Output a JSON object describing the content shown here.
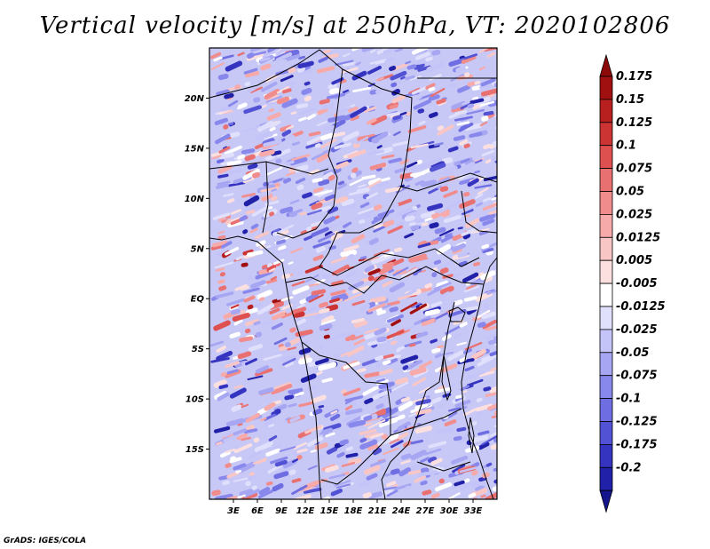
{
  "title": "Vertical velocity [m/s] at 250hPa, VT: 2020102806",
  "credit": "GrADS: IGES/COLA",
  "map": {
    "lat_range": [
      -20,
      25
    ],
    "lon_range": [
      0,
      36
    ],
    "lat_labels": [
      {
        "label": "20N",
        "value": 20
      },
      {
        "label": "15N",
        "value": 15
      },
      {
        "label": "10N",
        "value": 10
      },
      {
        "label": "5N",
        "value": 5
      },
      {
        "label": "EQ",
        "value": 0
      },
      {
        "label": "5S",
        "value": -5
      },
      {
        "label": "10S",
        "value": -10
      },
      {
        "label": "15S",
        "value": -15
      }
    ],
    "lon_labels": [
      {
        "label": "3E",
        "value": 3
      },
      {
        "label": "6E",
        "value": 6
      },
      {
        "label": "9E",
        "value": 9
      },
      {
        "label": "12E",
        "value": 12
      },
      {
        "label": "15E",
        "value": 15
      },
      {
        "label": "18E",
        "value": 18
      },
      {
        "label": "21E",
        "value": 21
      },
      {
        "label": "24E",
        "value": 24
      },
      {
        "label": "27E",
        "value": 27
      },
      {
        "label": "30E",
        "value": 30
      },
      {
        "label": "33E",
        "value": 33
      }
    ]
  },
  "colorbar": {
    "levels": [
      {
        "label": "0.175",
        "color": "#a01010"
      },
      {
        "label": "0.15",
        "color": "#b82020"
      },
      {
        "label": "0.125",
        "color": "#cc3434"
      },
      {
        "label": "0.1",
        "color": "#de5050"
      },
      {
        "label": "0.075",
        "color": "#e87070"
      },
      {
        "label": "0.05",
        "color": "#f08c8c"
      },
      {
        "label": "0.025",
        "color": "#f6aaaa"
      },
      {
        "label": "0.0125",
        "color": "#f9c6c6"
      },
      {
        "label": "0.005",
        "color": "#fce0e0"
      },
      {
        "label": "-0.005",
        "color": "#ffffff"
      },
      {
        "label": "-0.0125",
        "color": "#e0e0fc"
      },
      {
        "label": "-0.025",
        "color": "#c4c4f8"
      },
      {
        "label": "-0.05",
        "color": "#a6a6f2"
      },
      {
        "label": "-0.075",
        "color": "#8888ec"
      },
      {
        "label": "-0.1",
        "color": "#6e6ee2"
      },
      {
        "label": "-0.125",
        "color": "#5252d4"
      },
      {
        "label": "-0.175",
        "color": "#3434c0"
      },
      {
        "label": "-0.2",
        "color": "#2020a8"
      }
    ],
    "top_color": "#8c0a0a",
    "bottom_color": "#14148c"
  }
}
